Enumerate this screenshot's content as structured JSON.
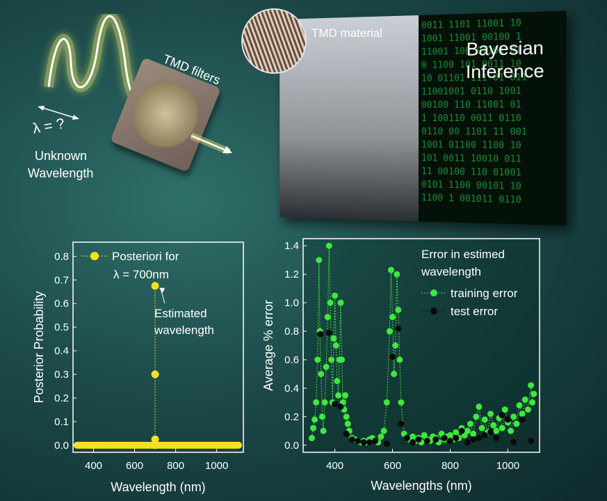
{
  "illustration": {
    "lambda_text": "λ = ?",
    "unknown_wavelength": [
      "Unknown",
      "Wavelength"
    ],
    "tmd_filters": "TMD filters",
    "tmd_material": "TMD material",
    "bayesian_inference": [
      "Bayesian",
      "Inference"
    ],
    "binary_lines": [
      "0011 1101 11001 10",
      "1001 11001 00100 1",
      "11001 100 01101 01",
      "0 1100 101 0011 10",
      "10 01101 111 01 011",
      "11001001 0110 1001",
      "00100 110 11001 01",
      "1 100110 0011 0110",
      "0110 00 1101 11 001",
      "1001 01100 1100 10",
      "101 0011 10010 011",
      "11 00100 110 01001",
      "0101 1100 00101 10",
      "1100 1 001011 0110"
    ]
  },
  "colors": {
    "posterior_yellow": "#f3e21f",
    "training_green": "#3fe83f",
    "test_black": "#0a0a0a"
  },
  "chart_data": [
    {
      "type": "scatter",
      "xlabel": "Wavelength (nm)",
      "ylabel": "Posterior Probability",
      "xlim": [
        300,
        1130
      ],
      "ylim": [
        -0.03,
        0.86
      ],
      "xticks": [
        "400",
        "600",
        "800",
        "1000"
      ],
      "yticks": [
        "0.0",
        "0.1",
        "0.2",
        "0.3",
        "0.4",
        "0.5",
        "0.6",
        "0.7",
        "0.8"
      ],
      "legend": [
        "Posteriori for",
        "λ = 700nm"
      ],
      "annotation": [
        "Estimated",
        "wavelength"
      ],
      "series": [
        {
          "name": "Posteriori for λ = 700nm",
          "baseline_range": [
            320,
            1110
          ],
          "points": [
            [
              700,
              0.675
            ],
            [
              700,
              0.3
            ],
            [
              700,
              0.025
            ],
            [
              700,
              0.0
            ]
          ]
        }
      ]
    },
    {
      "type": "scatter",
      "xlabel": "Wavelengths (nm)",
      "ylabel": "Average % error",
      "xlim": [
        290,
        1110
      ],
      "ylim": [
        -0.05,
        1.45
      ],
      "xticks": [
        "400",
        "600",
        "800",
        "1000"
      ],
      "yticks": [
        "0.0",
        "0.2",
        "0.4",
        "0.6",
        "0.8",
        "1.0",
        "1.2",
        "1.4"
      ],
      "legend_title": [
        "Error in estimed",
        "wavelength"
      ],
      "series": [
        {
          "name": "training error",
          "points": [
            [
              320,
              0.05
            ],
            [
              325,
              0.12
            ],
            [
              330,
              0.18
            ],
            [
              335,
              0.3
            ],
            [
              340,
              0.6
            ],
            [
              345,
              1.3
            ],
            [
              348,
              0.8
            ],
            [
              352,
              0.5
            ],
            [
              356,
              0.2
            ],
            [
              360,
              0.1
            ],
            [
              365,
              0.3
            ],
            [
              370,
              0.55
            ],
            [
              375,
              0.9
            ],
            [
              380,
              1.4
            ],
            [
              384,
              1.0
            ],
            [
              388,
              0.6
            ],
            [
              392,
              0.3
            ],
            [
              396,
              0.75
            ],
            [
              400,
              1.05
            ],
            [
              404,
              0.7
            ],
            [
              408,
              0.45
            ],
            [
              412,
              0.35
            ],
            [
              416,
              0.6
            ],
            [
              420,
              1.0
            ],
            [
              424,
              0.6
            ],
            [
              428,
              0.3
            ],
            [
              432,
              0.25
            ],
            [
              436,
              0.35
            ],
            [
              440,
              0.2
            ],
            [
              445,
              0.15
            ],
            [
              450,
              0.1
            ],
            [
              460,
              0.05
            ],
            [
              470,
              0.04
            ],
            [
              480,
              0.03
            ],
            [
              490,
              0.02
            ],
            [
              500,
              0.03
            ],
            [
              510,
              0.02
            ],
            [
              520,
              0.04
            ],
            [
              530,
              0.05
            ],
            [
              540,
              0.03
            ],
            [
              550,
              0.02
            ],
            [
              560,
              0.06
            ],
            [
              570,
              0.1
            ],
            [
              580,
              0.3
            ],
            [
              590,
              0.8
            ],
            [
              595,
              1.23
            ],
            [
              600,
              0.9
            ],
            [
              605,
              0.5
            ],
            [
              610,
              0.7
            ],
            [
              615,
              1.2
            ],
            [
              620,
              0.95
            ],
            [
              625,
              0.6
            ],
            [
              630,
              0.3
            ],
            [
              640,
              0.08
            ],
            [
              650,
              0.05
            ],
            [
              660,
              0.04
            ],
            [
              670,
              0.06
            ],
            [
              680,
              0.03
            ],
            [
              690,
              0.05
            ],
            [
              700,
              0.02
            ],
            [
              710,
              0.07
            ],
            [
              720,
              0.04
            ],
            [
              730,
              0.03
            ],
            [
              740,
              0.06
            ],
            [
              750,
              0.05
            ],
            [
              760,
              0.02
            ],
            [
              770,
              0.08
            ],
            [
              780,
              0.04
            ],
            [
              790,
              0.06
            ],
            [
              800,
              0.07
            ],
            [
              810,
              0.04
            ],
            [
              820,
              0.09
            ],
            [
              830,
              0.05
            ],
            [
              840,
              0.12
            ],
            [
              850,
              0.07
            ],
            [
              860,
              0.1
            ],
            [
              870,
              0.15
            ],
            [
              880,
              0.08
            ],
            [
              890,
              0.2
            ],
            [
              900,
              0.27
            ],
            [
              910,
              0.12
            ],
            [
              920,
              0.18
            ],
            [
              930,
              0.09
            ],
            [
              940,
              0.22
            ],
            [
              950,
              0.14
            ],
            [
              960,
              0.1
            ],
            [
              970,
              0.19
            ],
            [
              980,
              0.12
            ],
            [
              990,
              0.25
            ],
            [
              1000,
              0.16
            ],
            [
              1010,
              0.1
            ],
            [
              1020,
              0.2
            ],
            [
              1030,
              0.15
            ],
            [
              1040,
              0.28
            ],
            [
              1050,
              0.22
            ],
            [
              1060,
              0.32
            ],
            [
              1070,
              0.25
            ],
            [
              1080,
              0.42
            ],
            [
              1085,
              0.3
            ],
            [
              1090,
              0.36
            ]
          ]
        },
        {
          "name": "test error",
          "points": [
            [
              350,
              0.78
            ],
            [
              380,
              0.79
            ],
            [
              400,
              0.29
            ],
            [
              420,
              0.27
            ],
            [
              440,
              0.08
            ],
            [
              460,
              0.04
            ],
            [
              480,
              0.03
            ],
            [
              500,
              0.02
            ],
            [
              520,
              0.02
            ],
            [
              540,
              0.03
            ],
            [
              580,
              0.01
            ],
            [
              600,
              0.62
            ],
            [
              620,
              0.82
            ],
            [
              630,
              0.15
            ],
            [
              650,
              0.05
            ],
            [
              670,
              0.02
            ],
            [
              690,
              0.04
            ],
            [
              720,
              0.03
            ],
            [
              750,
              0.04
            ],
            [
              780,
              0.05
            ],
            [
              800,
              0.03
            ],
            [
              820,
              0.05
            ],
            [
              840,
              0.1
            ],
            [
              860,
              0.02
            ],
            [
              880,
              0.04
            ],
            [
              900,
              0.05
            ],
            [
              920,
              0.07
            ],
            [
              940,
              0.09
            ],
            [
              960,
              0.05
            ],
            [
              980,
              0.21
            ],
            [
              1000,
              0.18
            ],
            [
              1020,
              0.02
            ],
            [
              1050,
              0.18
            ],
            [
              1080,
              0.03
            ]
          ]
        }
      ]
    }
  ]
}
